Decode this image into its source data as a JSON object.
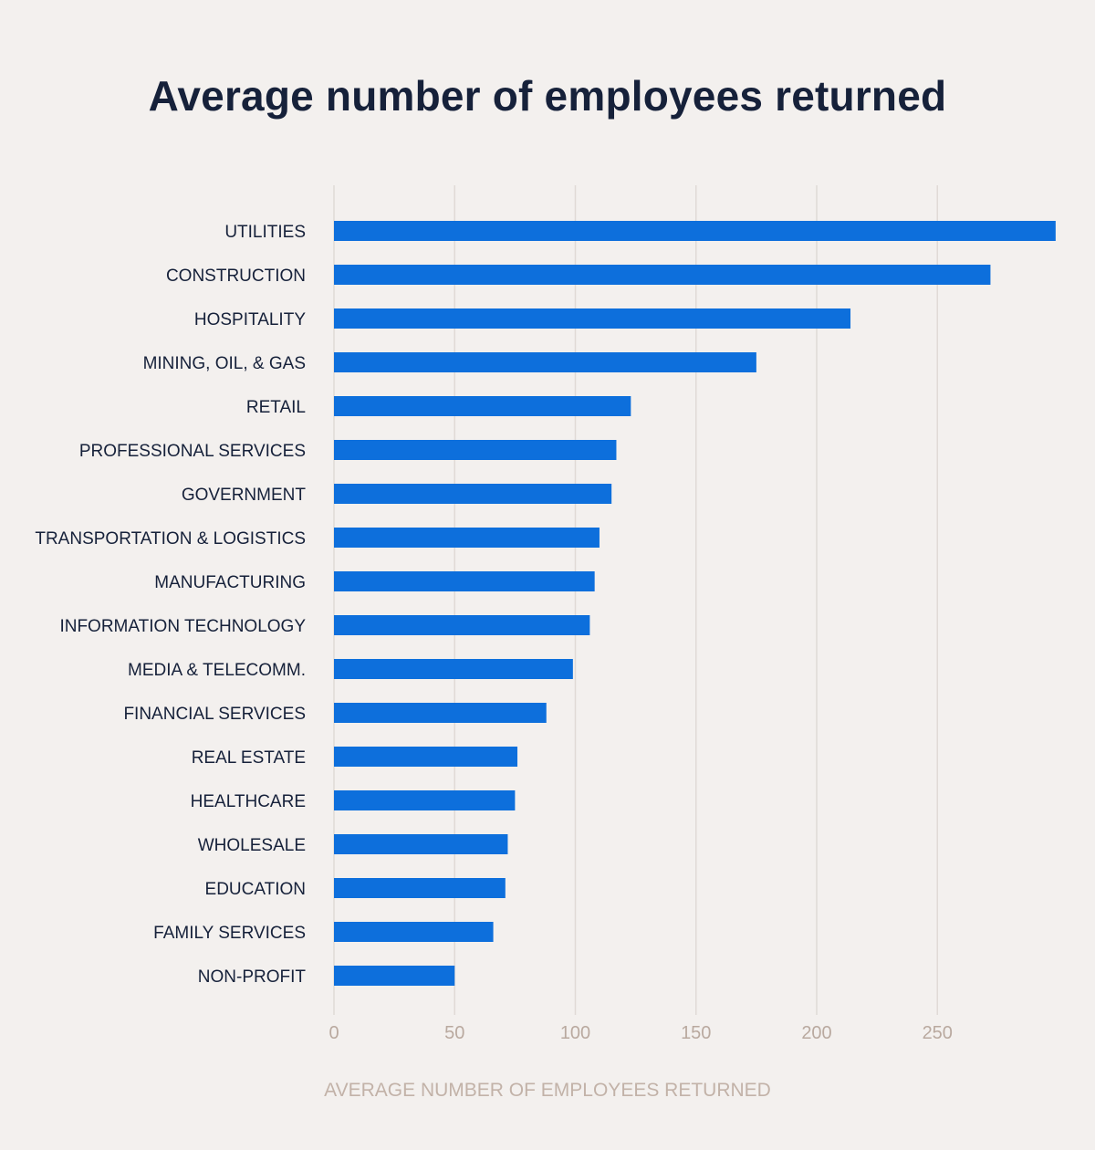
{
  "chart_data": {
    "type": "bar",
    "orientation": "horizontal",
    "title": "Average number of employees returned",
    "xlabel": "AVERAGE NUMBER OF EMPLOYEES RETURNED",
    "ylabel": "",
    "categories": [
      "UTILITIES",
      "CONSTRUCTION",
      "HOSPITALITY",
      "MINING, OIL, & GAS",
      "RETAIL",
      "PROFESSIONAL SERVICES",
      "GOVERNMENT",
      "TRANSPORTATION & LOGISTICS",
      "MANUFACTURING",
      "INFORMATION TECHNOLOGY",
      "MEDIA & TELECOMM.",
      "FINANCIAL SERVICES",
      "REAL ESTATE",
      "HEALTHCARE",
      "WHOLESALE",
      "EDUCATION",
      "FAMILY SERVICES",
      "NON-PROFIT"
    ],
    "values": [
      299,
      272,
      214,
      175,
      123,
      117,
      115,
      110,
      108,
      106,
      99,
      88,
      76,
      75,
      72,
      71,
      66,
      50
    ],
    "xticks": [
      0,
      50,
      100,
      150,
      200,
      250
    ],
    "xlim": [
      0,
      300
    ],
    "grid": true,
    "legend": "none",
    "bar_color": "#0d6fdc"
  }
}
